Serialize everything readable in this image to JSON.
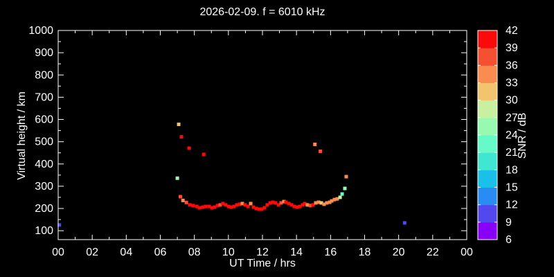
{
  "chart_data": {
    "type": "scatter",
    "title": "2026-02-09. f = 6010 kHz",
    "xlabel": "UT Time / hrs",
    "ylabel": "Virtual height / km",
    "background_color": "#000000",
    "frame_color": "#ffffff",
    "xlim": [
      0,
      24
    ],
    "ylim": [
      60,
      1000
    ],
    "x_major_ticks": [
      0,
      2,
      4,
      6,
      8,
      10,
      12,
      14,
      16,
      18,
      20,
      22,
      24
    ],
    "x_tick_labels": [
      "00",
      "02",
      "04",
      "06",
      "08",
      "10",
      "12",
      "14",
      "16",
      "18",
      "20",
      "22",
      "00"
    ],
    "x_minor_step_hours": 1,
    "y_major_ticks": [
      100,
      200,
      300,
      400,
      500,
      600,
      700,
      800,
      900,
      1000
    ],
    "y_tick_labels": [
      "100",
      "200",
      "300",
      "400",
      "500",
      "600",
      "700",
      "800",
      "900",
      "1000"
    ],
    "y_minor_step_km": 50,
    "colorbar": {
      "label": "SNR / dB",
      "ticks": [
        6,
        9,
        12,
        15,
        18,
        21,
        24,
        27,
        30,
        33,
        36,
        39,
        42
      ],
      "colors_bottom_to_top": [
        "#8800FA",
        "#5347EE",
        "#2A8CF2",
        "#1AC0E8",
        "#40E6D0",
        "#66FAC8",
        "#98FAB0",
        "#C8F0A0",
        "#F2C46E",
        "#FA8C50",
        "#F65032",
        "#FA0A0A"
      ],
      "snr_min": 6,
      "snr_max": 42
    },
    "points_format": [
      "ut_hours",
      "virtual_height_km",
      "snr_db"
    ],
    "points": [
      [
        0.07,
        126,
        10
      ],
      [
        7.0,
        336,
        25
      ],
      [
        7.08,
        578,
        32
      ],
      [
        7.18,
        253,
        37
      ],
      [
        7.24,
        522,
        40
      ],
      [
        7.33,
        236,
        34
      ],
      [
        7.53,
        227,
        37
      ],
      [
        7.69,
        471,
        40
      ],
      [
        7.73,
        216,
        40
      ],
      [
        7.93,
        213,
        40
      ],
      [
        8.14,
        209,
        40
      ],
      [
        8.3,
        203,
        40
      ],
      [
        8.5,
        206,
        40
      ],
      [
        8.55,
        443,
        40
      ],
      [
        8.66,
        209,
        40
      ],
      [
        8.87,
        209,
        40
      ],
      [
        9.03,
        203,
        40
      ],
      [
        9.19,
        206,
        40
      ],
      [
        9.36,
        213,
        40
      ],
      [
        9.52,
        216,
        37
      ],
      [
        9.68,
        222,
        40
      ],
      [
        9.84,
        216,
        40
      ],
      [
        10.01,
        209,
        40
      ],
      [
        10.17,
        206,
        40
      ],
      [
        10.33,
        209,
        40
      ],
      [
        10.49,
        216,
        40
      ],
      [
        10.66,
        219,
        40
      ],
      [
        10.82,
        222,
        34
      ],
      [
        10.98,
        216,
        40
      ],
      [
        11.15,
        209,
        40
      ],
      [
        11.31,
        222,
        34
      ],
      [
        11.47,
        206,
        40
      ],
      [
        11.63,
        200,
        40
      ],
      [
        11.8,
        197,
        40
      ],
      [
        11.96,
        197,
        40
      ],
      [
        12.12,
        203,
        40
      ],
      [
        12.28,
        216,
        40
      ],
      [
        12.45,
        225,
        40
      ],
      [
        12.61,
        228,
        40
      ],
      [
        12.77,
        225,
        40
      ],
      [
        12.94,
        216,
        40
      ],
      [
        13.1,
        225,
        37
      ],
      [
        13.26,
        231,
        34
      ],
      [
        13.38,
        228,
        40
      ],
      [
        13.55,
        222,
        40
      ],
      [
        13.71,
        216,
        40
      ],
      [
        13.87,
        209,
        40
      ],
      [
        14.03,
        206,
        40
      ],
      [
        14.2,
        209,
        40
      ],
      [
        14.36,
        216,
        40
      ],
      [
        14.48,
        222,
        40
      ],
      [
        14.64,
        216,
        34
      ],
      [
        14.81,
        213,
        37
      ],
      [
        14.97,
        216,
        40
      ],
      [
        15.08,
        488,
        34
      ],
      [
        15.13,
        225,
        34
      ],
      [
        15.3,
        228,
        34
      ],
      [
        15.4,
        457,
        37
      ],
      [
        15.46,
        225,
        31
      ],
      [
        15.62,
        219,
        34
      ],
      [
        15.78,
        225,
        34
      ],
      [
        15.95,
        228,
        34
      ],
      [
        16.07,
        234,
        34
      ],
      [
        16.23,
        240,
        34
      ],
      [
        16.39,
        243,
        34
      ],
      [
        16.56,
        250,
        28
      ],
      [
        16.68,
        265,
        22
      ],
      [
        16.84,
        290,
        25
      ],
      [
        16.92,
        343,
        34
      ],
      [
        20.35,
        135,
        11
      ]
    ]
  }
}
